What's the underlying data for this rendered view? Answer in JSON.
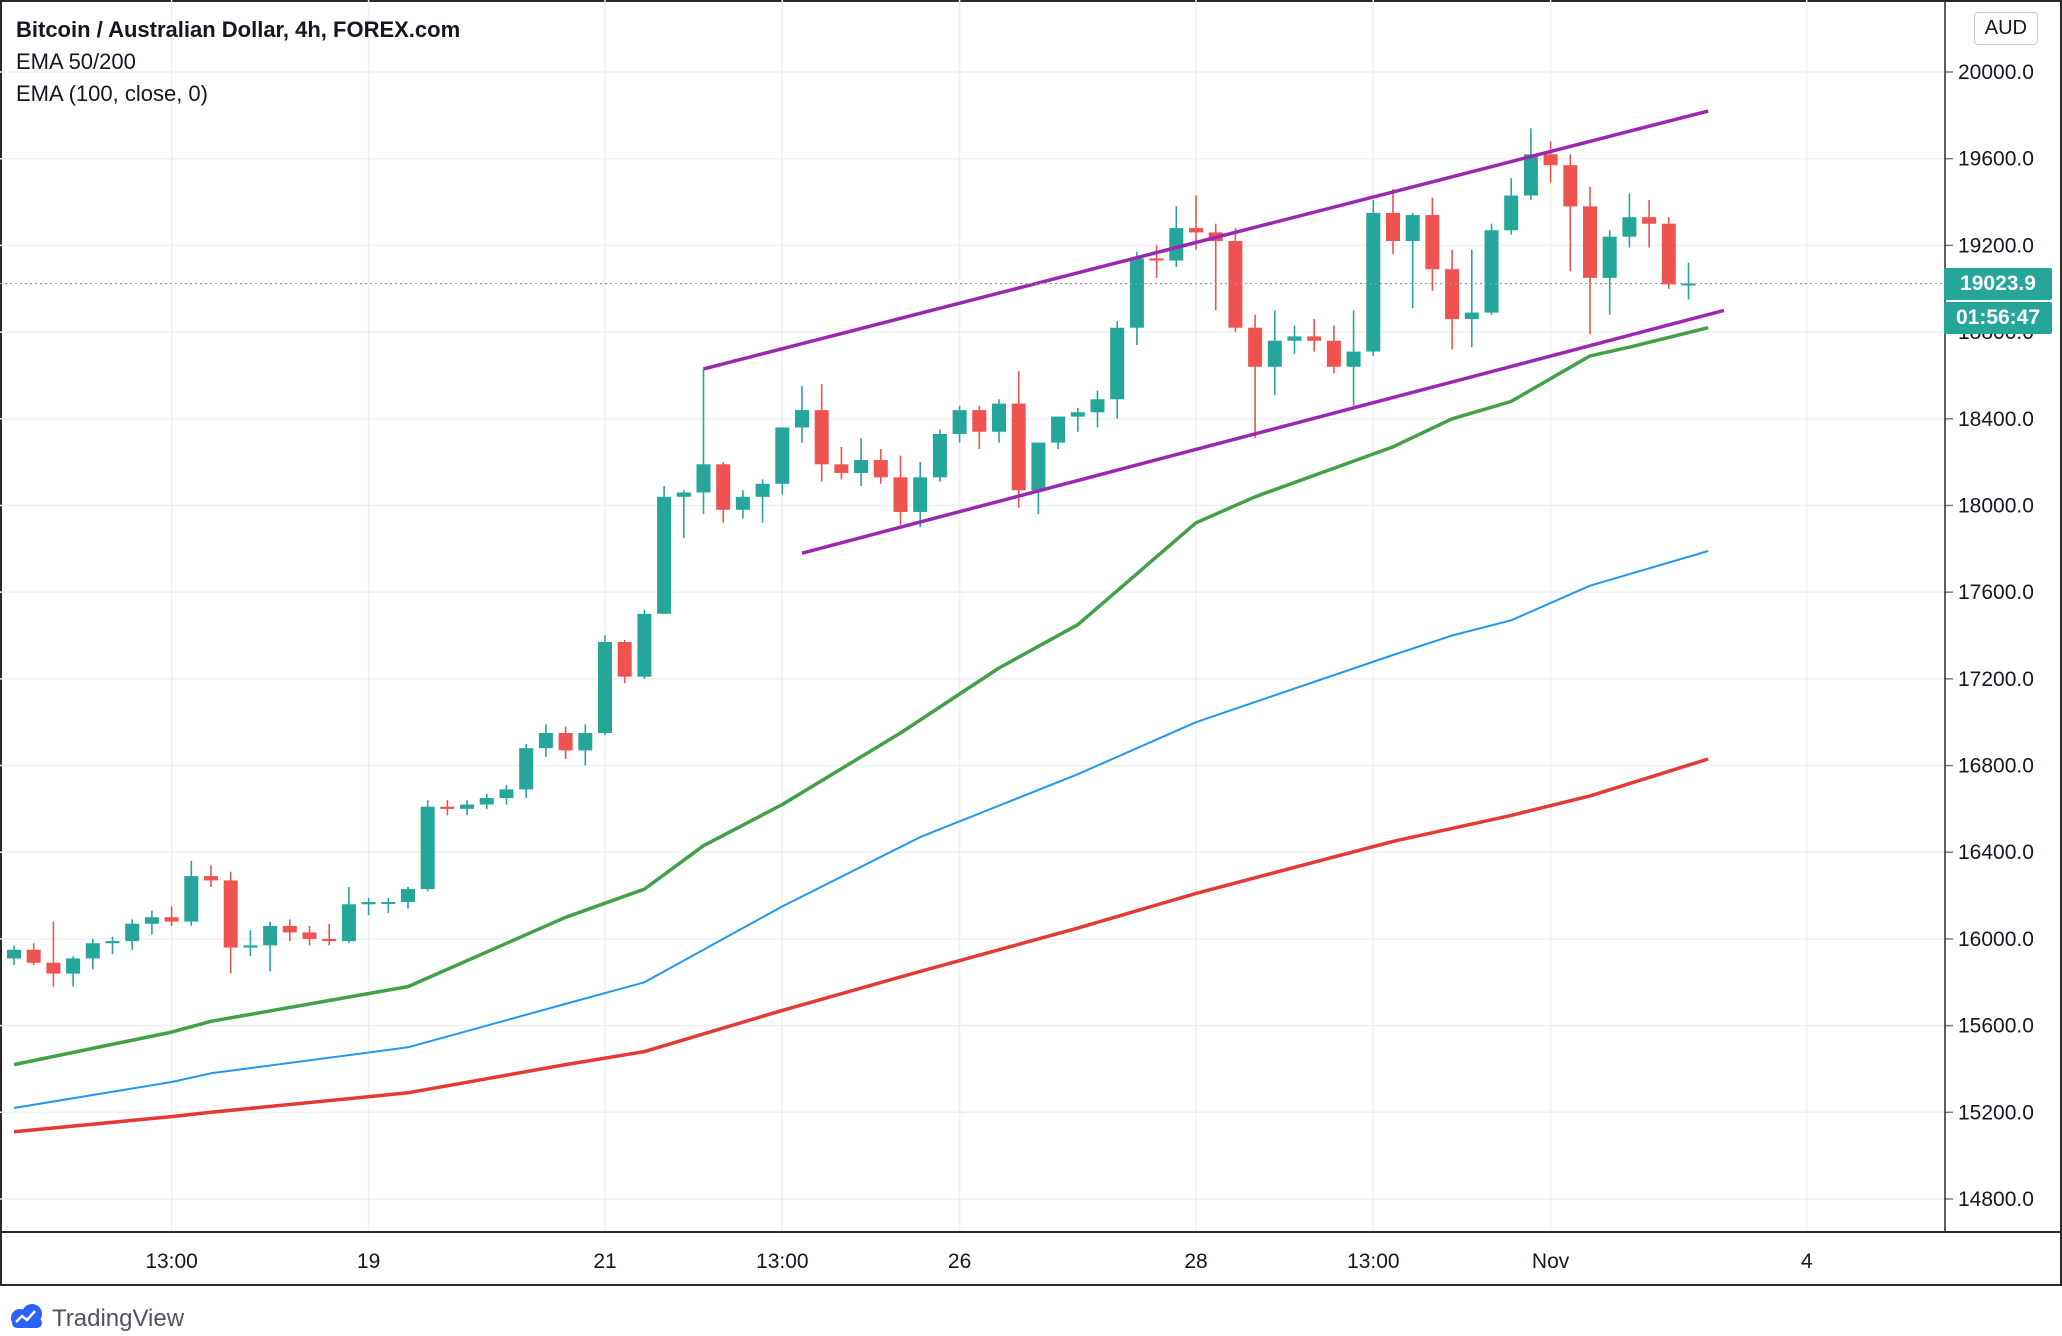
{
  "legend": {
    "title": "Bitcoin / Australian Dollar, 4h, FOREX.com",
    "line2": "EMA 50/200",
    "line3": "EMA (100, close, 0)"
  },
  "currency_button": "AUD",
  "brand": "TradingView",
  "last_price_label": "19023.9",
  "countdown_label": "01:56:47",
  "colors": {
    "up": "#26a69a",
    "down": "#ef5350",
    "ema50": "#43a047",
    "ema100": "#2196f3",
    "ema200": "#e53935",
    "channel": "#9c27b0"
  },
  "chart_data": {
    "type": "candlestick",
    "symbol": "Bitcoin / Australian Dollar",
    "interval": "4h",
    "ylim": [
      14600,
      20200
    ],
    "y_ticks": [
      "20000.0",
      "19600.0",
      "19200.0",
      "18800.0",
      "18400.0",
      "18000.0",
      "17600.0",
      "17200.0",
      "16800.0",
      "16400.0",
      "16000.0",
      "15600.0",
      "15200.0",
      "14800.0"
    ],
    "x_ticks": [
      {
        "label": "13:00",
        "index": 8
      },
      {
        "label": "19",
        "index": 18
      },
      {
        "label": "21",
        "index": 30
      },
      {
        "label": "13:00",
        "index": 39
      },
      {
        "label": "26",
        "index": 48
      },
      {
        "label": "28",
        "index": 60
      },
      {
        "label": "13:00",
        "index": 69
      },
      {
        "label": "Nov",
        "index": 78
      },
      {
        "label": "4",
        "index": 91
      }
    ],
    "candles": [
      [
        15910,
        15970,
        15880,
        15950
      ],
      [
        15950,
        15980,
        15880,
        15890
      ],
      [
        15890,
        16080,
        15780,
        15840
      ],
      [
        15840,
        15920,
        15780,
        15910
      ],
      [
        15910,
        16000,
        15860,
        15980
      ],
      [
        15980,
        16010,
        15930,
        15990
      ],
      [
        15990,
        16090,
        15950,
        16070
      ],
      [
        16070,
        16130,
        16020,
        16100
      ],
      [
        16100,
        16150,
        16060,
        16080
      ],
      [
        16080,
        16360,
        16060,
        16290
      ],
      [
        16290,
        16340,
        16240,
        16270
      ],
      [
        16270,
        16310,
        15840,
        15960
      ],
      [
        15960,
        16040,
        15920,
        15970
      ],
      [
        15970,
        16080,
        15850,
        16060
      ],
      [
        16060,
        16090,
        15990,
        16030
      ],
      [
        16030,
        16060,
        15970,
        16000
      ],
      [
        16000,
        16070,
        15970,
        15990
      ],
      [
        15990,
        16240,
        15980,
        16160
      ],
      [
        16160,
        16190,
        16110,
        16170
      ],
      [
        16170,
        16190,
        16120,
        16170
      ],
      [
        16170,
        16240,
        16140,
        16230
      ],
      [
        16230,
        16640,
        16220,
        16610
      ],
      [
        16610,
        16640,
        16570,
        16600
      ],
      [
        16600,
        16640,
        16570,
        16620
      ],
      [
        16620,
        16670,
        16600,
        16650
      ],
      [
        16650,
        16710,
        16620,
        16690
      ],
      [
        16690,
        16900,
        16650,
        16880
      ],
      [
        16880,
        16990,
        16840,
        16950
      ],
      [
        16950,
        16980,
        16830,
        16870
      ],
      [
        16870,
        16990,
        16800,
        16950
      ],
      [
        16950,
        17400,
        16940,
        17370
      ],
      [
        17370,
        17380,
        17180,
        17210
      ],
      [
        17210,
        17520,
        17200,
        17500
      ],
      [
        17500,
        18090,
        17500,
        18040
      ],
      [
        18040,
        18070,
        17850,
        18060
      ],
      [
        18060,
        18630,
        17960,
        18190
      ],
      [
        18190,
        18200,
        17920,
        17980
      ],
      [
        17980,
        18070,
        17940,
        18040
      ],
      [
        18040,
        18120,
        17920,
        18100
      ],
      [
        18100,
        18360,
        18050,
        18360
      ],
      [
        18360,
        18550,
        18290,
        18440
      ],
      [
        18440,
        18560,
        18110,
        18190
      ],
      [
        18190,
        18270,
        18120,
        18150
      ],
      [
        18150,
        18310,
        18090,
        18210
      ],
      [
        18210,
        18260,
        18100,
        18130
      ],
      [
        18130,
        18230,
        17910,
        17970
      ],
      [
        17970,
        18200,
        17900,
        18130
      ],
      [
        18130,
        18350,
        18110,
        18330
      ],
      [
        18330,
        18460,
        18290,
        18440
      ],
      [
        18440,
        18460,
        18260,
        18340
      ],
      [
        18340,
        18490,
        18290,
        18470
      ],
      [
        18470,
        18620,
        17990,
        18070
      ],
      [
        18070,
        18280,
        17960,
        18290
      ],
      [
        18290,
        18400,
        18260,
        18410
      ],
      [
        18410,
        18450,
        18340,
        18430
      ],
      [
        18430,
        18530,
        18360,
        18490
      ],
      [
        18490,
        18850,
        18400,
        18820
      ],
      [
        18820,
        19170,
        18740,
        19140
      ],
      [
        19140,
        19200,
        19050,
        19130
      ],
      [
        19130,
        19380,
        19100,
        19280
      ],
      [
        19280,
        19430,
        19180,
        19260
      ],
      [
        19260,
        19300,
        18900,
        19220
      ],
      [
        19220,
        19280,
        18800,
        18820
      ],
      [
        18820,
        18880,
        18310,
        18640
      ],
      [
        18640,
        18900,
        18510,
        18760
      ],
      [
        18760,
        18830,
        18700,
        18780
      ],
      [
        18780,
        18860,
        18710,
        18760
      ],
      [
        18760,
        18830,
        18610,
        18640
      ],
      [
        18640,
        18900,
        18460,
        18710
      ],
      [
        18710,
        19410,
        18690,
        19350
      ],
      [
        19350,
        19460,
        19160,
        19220
      ],
      [
        19220,
        19350,
        18910,
        19340
      ],
      [
        19340,
        19420,
        18990,
        19090
      ],
      [
        19090,
        19180,
        18720,
        18860
      ],
      [
        18860,
        19180,
        18730,
        18890
      ],
      [
        18890,
        19300,
        18880,
        19270
      ],
      [
        19270,
        19510,
        19250,
        19430
      ],
      [
        19430,
        19740,
        19410,
        19620
      ],
      [
        19620,
        19680,
        19490,
        19570
      ],
      [
        19570,
        19620,
        19080,
        19380
      ],
      [
        19380,
        19470,
        18790,
        19050
      ],
      [
        19050,
        19270,
        18880,
        19240
      ],
      [
        19240,
        19440,
        19190,
        19330
      ],
      [
        19330,
        19410,
        19190,
        19300
      ],
      [
        19300,
        19330,
        19000,
        19020
      ],
      [
        19020,
        19120,
        18950,
        19024
      ]
    ],
    "series": [
      {
        "name": "EMA 50",
        "color": "#43a047",
        "x": [
          0,
          8,
          10,
          20,
          25,
          28,
          32,
          35,
          39,
          45,
          50,
          54,
          60,
          63,
          70,
          73,
          76,
          80,
          82,
          86
        ],
        "y": [
          15420,
          15570,
          15620,
          15780,
          15980,
          16100,
          16230,
          16430,
          16620,
          16950,
          17250,
          17450,
          17920,
          18040,
          18270,
          18400,
          18480,
          18690,
          18730,
          18820
        ]
      },
      {
        "name": "EMA 100",
        "color": "#2196f3",
        "x": [
          0,
          8,
          10,
          20,
          28,
          32,
          39,
          46,
          54,
          60,
          70,
          73,
          76,
          80,
          86
        ],
        "y": [
          15220,
          15340,
          15380,
          15500,
          15700,
          15800,
          16150,
          16470,
          16760,
          17000,
          17310,
          17400,
          17470,
          17630,
          17790
        ]
      },
      {
        "name": "EMA 200",
        "color": "#e53935",
        "x": [
          0,
          8,
          10,
          20,
          28,
          32,
          39,
          46,
          54,
          60,
          70,
          76,
          80,
          86
        ],
        "y": [
          15110,
          15180,
          15200,
          15290,
          15420,
          15480,
          15670,
          15850,
          16050,
          16210,
          16450,
          16570,
          16660,
          16830
        ]
      }
    ],
    "channel_lines": [
      {
        "x": [
          35,
          86
        ],
        "y": [
          18630,
          19820
        ]
      },
      {
        "x": [
          40,
          86.8
        ],
        "y": [
          17780,
          18900
        ]
      }
    ],
    "last_price": 19023.9
  }
}
